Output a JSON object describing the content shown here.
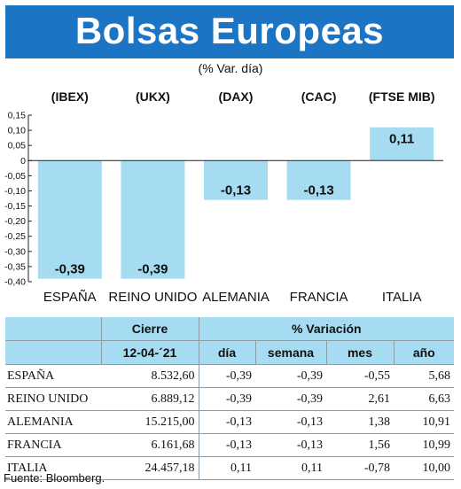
{
  "header": {
    "title": "Bolsas Europeas",
    "subtitle": "(% Var. día)"
  },
  "chart_data": {
    "type": "bar",
    "indices": [
      "(IBEX)",
      "(UKX)",
      "(DAX)",
      "(CAC)",
      "(FTSE MIB)"
    ],
    "categories": [
      "ESPAÑA",
      "REINO UNIDO",
      "ALEMANIA",
      "FRANCIA",
      "ITALIA"
    ],
    "values": [
      -0.39,
      -0.39,
      -0.13,
      -0.13,
      0.11
    ],
    "value_labels": [
      "-0,39",
      "-0,39",
      "-0,13",
      "-0,13",
      "0,11"
    ],
    "ylim": [
      -0.4,
      0.15
    ],
    "yticks": [
      0.15,
      0.1,
      0.05,
      0,
      -0.05,
      -0.1,
      -0.15,
      -0.2,
      -0.25,
      -0.3,
      -0.35,
      -0.4
    ],
    "ytick_labels": [
      "0,15",
      "0,10",
      "0,05",
      "0",
      "-0,05",
      "-0,10",
      "-0,15",
      "-0,20",
      "-0,25",
      "-0,30",
      "-0,35",
      "-0,40"
    ],
    "bar_color": "#a5dcf2",
    "grid": false,
    "title": "",
    "xlabel": "",
    "ylabel": ""
  },
  "table": {
    "group_headers": {
      "cierre": "Cierre",
      "variacion": "% Variación"
    },
    "sub_headers": {
      "date": "12-04-´21",
      "dia": "día",
      "semana": "semana",
      "mes": "mes",
      "ano": "año"
    },
    "rows": [
      {
        "name": "ESPAÑA",
        "cierre": "8.532,60",
        "dia": "-0,39",
        "semana": "-0,39",
        "mes": "-0,55",
        "ano": "5,68"
      },
      {
        "name": "REINO UNIDO",
        "cierre": "6.889,12",
        "dia": "-0,39",
        "semana": "-0,39",
        "mes": "2,61",
        "ano": "6,63"
      },
      {
        "name": "ALEMANIA",
        "cierre": "15.215,00",
        "dia": "-0,13",
        "semana": "-0,13",
        "mes": "1,38",
        "ano": "10,91"
      },
      {
        "name": "FRANCIA",
        "cierre": "6.161,68",
        "dia": "-0,13",
        "semana": "-0,13",
        "mes": "1,56",
        "ano": "10,99"
      },
      {
        "name": "ITALIA",
        "cierre": "24.457,18",
        "dia": "0,11",
        "semana": "0,11",
        "mes": "-0,78",
        "ano": "10,00"
      }
    ]
  },
  "footer": {
    "source": "Fuente: Bloomberg."
  },
  "colors": {
    "title_bg": "#1b74c4",
    "bar": "#a5dcf2",
    "table_header": "#a5dcf2"
  }
}
